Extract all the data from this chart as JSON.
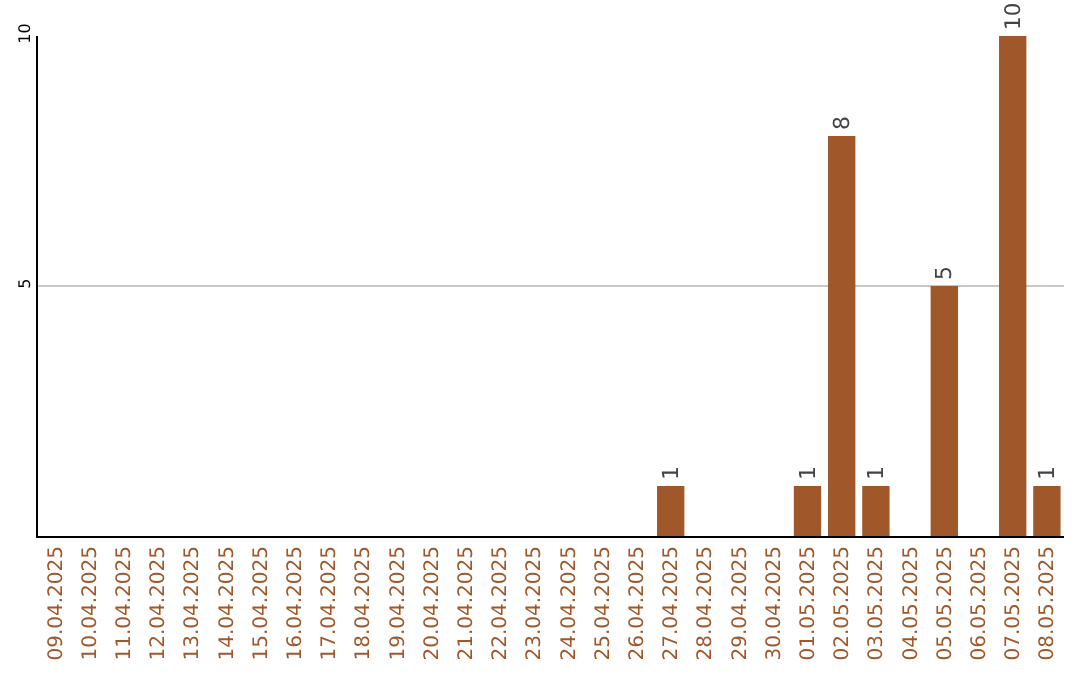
{
  "chart_data": {
    "type": "bar",
    "categories": [
      "09.04.2025",
      "10.04.2025",
      "11.04.2025",
      "12.04.2025",
      "13.04.2025",
      "14.04.2025",
      "15.04.2025",
      "16.04.2025",
      "17.04.2025",
      "18.04.2025",
      "19.04.2025",
      "20.04.2025",
      "21.04.2025",
      "22.04.2025",
      "23.04.2025",
      "24.04.2025",
      "25.04.2025",
      "26.04.2025",
      "27.04.2025",
      "28.04.2025",
      "29.04.2025",
      "30.04.2025",
      "01.05.2025",
      "02.05.2025",
      "03.05.2025",
      "04.05.2025",
      "05.05.2025",
      "06.05.2025",
      "07.05.2025",
      "08.05.2025"
    ],
    "values": [
      0,
      0,
      0,
      0,
      0,
      0,
      0,
      0,
      0,
      0,
      0,
      0,
      0,
      0,
      0,
      0,
      0,
      0,
      1,
      0,
      0,
      0,
      1,
      8,
      1,
      0,
      5,
      0,
      10,
      1
    ],
    "value_labels": [
      null,
      null,
      null,
      null,
      null,
      null,
      null,
      null,
      null,
      null,
      null,
      null,
      null,
      null,
      null,
      null,
      null,
      null,
      "1",
      null,
      null,
      null,
      "1",
      "8",
      "1",
      null,
      "5",
      null,
      "10",
      "1"
    ],
    "color": "#a0582a",
    "ylim": [
      0,
      10
    ],
    "yticks": [
      5,
      10
    ],
    "grid": "y"
  }
}
